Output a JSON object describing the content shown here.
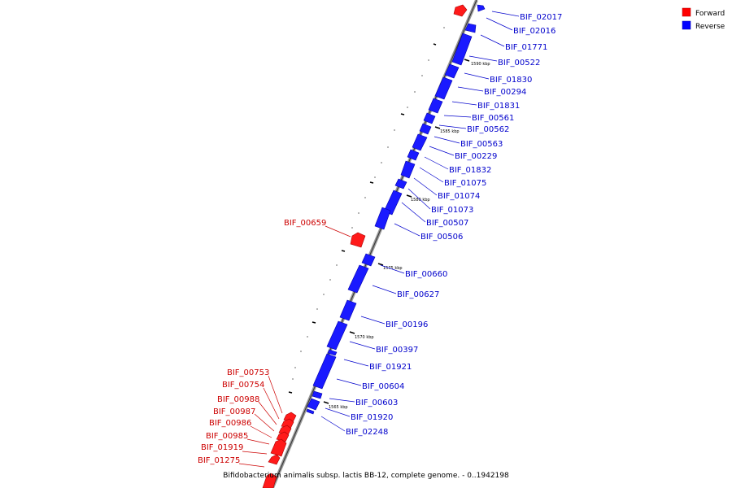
{
  "legend": [
    {
      "label": "Forward",
      "color": "#ff0000"
    },
    {
      "label": "Reverse",
      "color": "#0000ff"
    }
  ],
  "caption": "Bifidobacterium animalis subsp. lactis BB-12, complete genome. - 0..1942198",
  "kbp_marks": [
    "1590 kbp",
    "1585 kbp",
    "1580 kbp",
    "1575 kbp",
    "1570 kbp",
    "1565 kbp"
  ],
  "forward_genes": [
    "BIF_00659",
    "BIF_00753",
    "BIF_00754",
    "BIF_00988",
    "BIF_00987",
    "BIF_00986",
    "BIF_00985",
    "BIF_01919",
    "BIF_01275"
  ],
  "reverse_genes": [
    "BIF_02017",
    "BIF_02016",
    "BIF_01771",
    "BIF_00522",
    "BIF_01830",
    "BIF_00294",
    "BIF_01831",
    "BIF_00561",
    "BIF_00562",
    "BIF_00563",
    "BIF_00229",
    "BIF_01832",
    "BIF_01075",
    "BIF_01074",
    "BIF_01073",
    "BIF_00507",
    "BIF_00506",
    "BIF_00660",
    "BIF_00627",
    "BIF_00196",
    "BIF_00397",
    "BIF_01921",
    "BIF_00604",
    "BIF_00603",
    "BIF_01920",
    "BIF_02248"
  ]
}
